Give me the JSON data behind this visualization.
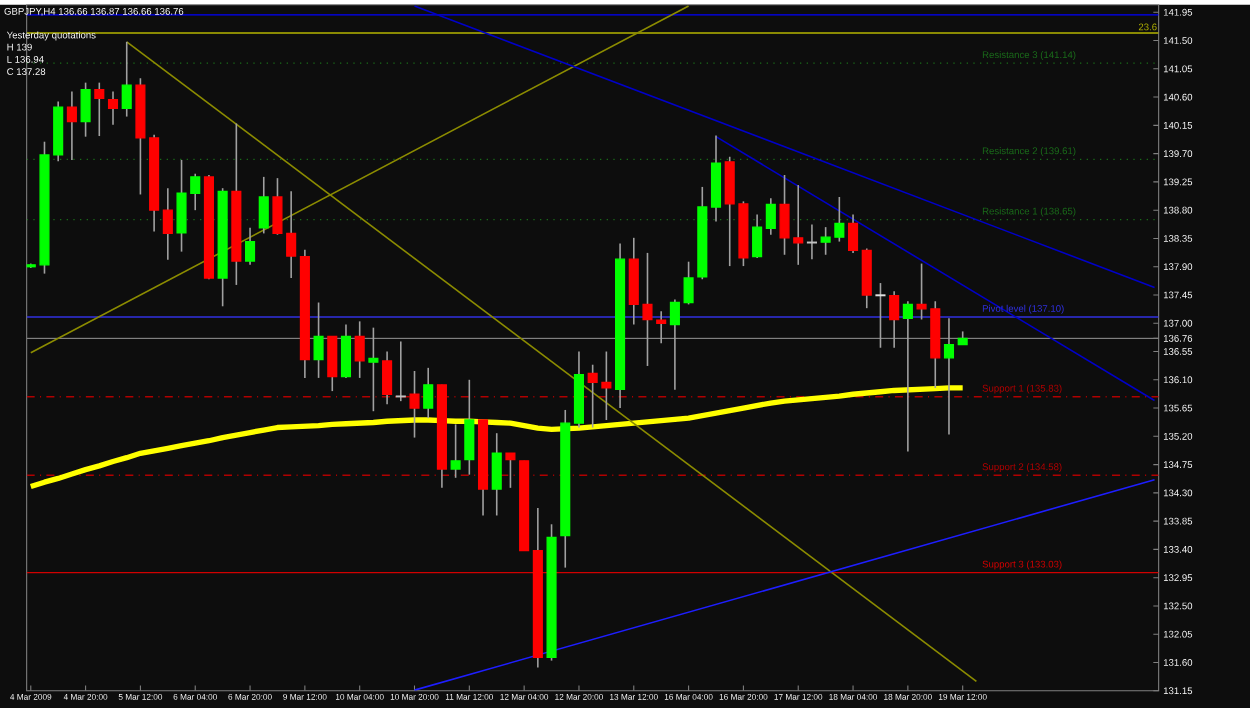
{
  "chart_data": {
    "type": "candlestick",
    "title": "GBPJPY,H4 136.66 136.87 136.66 136.76",
    "annotations": [
      "Yesterday quotations",
      "H 139",
      "L 136.94",
      "C 137.28",
      {
        "text": "23.6",
        "y": 141.62
      }
    ],
    "categories": [
      "4 Mar 2009",
      null,
      null,
      null,
      "4 Mar 20:00",
      null,
      null,
      null,
      "5 Mar 12:00",
      null,
      null,
      null,
      "6 Mar 04:00",
      null,
      null,
      null,
      "6 Mar 20:00",
      null,
      null,
      null,
      "9 Mar 12:00",
      null,
      null,
      null,
      "10 Mar 04:00",
      null,
      null,
      null,
      "10 Mar 20:00",
      null,
      null,
      null,
      "11 Mar 12:00",
      null,
      null,
      null,
      "12 Mar 04:00",
      null,
      null,
      null,
      "12 Mar 20:00",
      null,
      null,
      null,
      "13 Mar 12:00",
      null,
      null,
      null,
      "16 Mar 04:00",
      null,
      null,
      null,
      "16 Mar 20:00",
      null,
      null,
      null,
      "17 Mar 12:00",
      null,
      null,
      null,
      "18 Mar 04:00",
      null,
      null,
      null,
      "18 Mar 20:00",
      null,
      null,
      null,
      "19 Mar 12:00",
      null,
      null,
      null,
      null,
      null,
      null,
      null,
      null,
      null,
      null,
      null,
      null,
      null,
      null
    ],
    "ohlc": [
      [
        137.9,
        137.95,
        137.88,
        137.93
      ],
      [
        137.93,
        139.89,
        137.79,
        139.68
      ],
      [
        139.68,
        140.53,
        139.58,
        140.44
      ],
      [
        140.44,
        140.69,
        139.6,
        140.21
      ],
      [
        140.21,
        140.83,
        139.97,
        140.72
      ],
      [
        140.72,
        140.83,
        139.98,
        140.58
      ],
      [
        140.56,
        140.69,
        140.16,
        140.42
      ],
      [
        140.42,
        141.48,
        140.29,
        140.79
      ],
      [
        140.79,
        140.9,
        139.05,
        139.95
      ],
      [
        139.95,
        140.0,
        138.46,
        138.8
      ],
      [
        138.8,
        139.15,
        138.01,
        138.43
      ],
      [
        138.44,
        139.6,
        138.14,
        139.07
      ],
      [
        139.07,
        139.38,
        138.8,
        139.33
      ],
      [
        139.33,
        139.36,
        137.7,
        137.72
      ],
      [
        137.72,
        139.15,
        137.27,
        139.1
      ],
      [
        139.1,
        140.18,
        137.61,
        137.99
      ],
      [
        137.99,
        138.52,
        137.93,
        138.3
      ],
      [
        138.52,
        139.33,
        138.43,
        139.01
      ],
      [
        139.01,
        139.31,
        138.41,
        138.43
      ],
      [
        138.43,
        139.1,
        137.72,
        138.07
      ],
      [
        138.06,
        138.17,
        136.13,
        136.42
      ],
      [
        136.42,
        137.33,
        136.13,
        136.79
      ],
      [
        136.79,
        136.79,
        135.92,
        136.15
      ],
      [
        136.15,
        136.98,
        136.13,
        136.79
      ],
      [
        136.79,
        137.03,
        136.13,
        136.4
      ],
      [
        136.38,
        136.93,
        135.6,
        136.44
      ],
      [
        136.4,
        136.55,
        135.71,
        135.87
      ],
      [
        135.84,
        136.71,
        135.76,
        135.83
      ],
      [
        135.87,
        136.24,
        135.18,
        135.65
      ],
      [
        135.65,
        136.29,
        135.49,
        136.02
      ],
      [
        136.02,
        136.02,
        134.38,
        134.68
      ],
      [
        134.68,
        135.39,
        134.54,
        134.81
      ],
      [
        134.83,
        136.1,
        134.59,
        135.46
      ],
      [
        135.46,
        135.46,
        133.94,
        134.36
      ],
      [
        134.36,
        135.25,
        133.94,
        134.93
      ],
      [
        134.93,
        134.93,
        134.38,
        134.83
      ],
      [
        134.81,
        134.81,
        133.38,
        133.38
      ],
      [
        133.38,
        134.06,
        131.52,
        131.68
      ],
      [
        131.68,
        133.8,
        131.63,
        133.59
      ],
      [
        133.62,
        135.62,
        133.11,
        135.41
      ],
      [
        135.41,
        136.55,
        135.34,
        136.18
      ],
      [
        136.2,
        136.34,
        135.34,
        136.06
      ],
      [
        136.06,
        136.55,
        135.46,
        135.97
      ],
      [
        135.95,
        138.27,
        135.65,
        138.02
      ],
      [
        138.02,
        138.36,
        136.98,
        137.3
      ],
      [
        137.3,
        138.12,
        136.32,
        137.06
      ],
      [
        137.05,
        137.19,
        136.68,
        137.0
      ],
      [
        136.98,
        137.38,
        135.94,
        137.33
      ],
      [
        137.33,
        137.98,
        137.3,
        137.72
      ],
      [
        137.74,
        139.17,
        137.7,
        138.85
      ],
      [
        138.85,
        139.99,
        138.62,
        139.55
      ],
      [
        139.57,
        139.65,
        137.91,
        138.9
      ],
      [
        138.9,
        138.94,
        137.91,
        138.04
      ],
      [
        138.06,
        138.73,
        138.04,
        138.53
      ],
      [
        138.51,
        138.99,
        138.41,
        138.89
      ],
      [
        138.89,
        139.36,
        138.09,
        138.36
      ],
      [
        138.36,
        139.2,
        137.93,
        138.28
      ],
      [
        138.28,
        138.57,
        138.02,
        138.29
      ],
      [
        138.29,
        138.53,
        138.09,
        138.37
      ],
      [
        138.37,
        139.01,
        138.3,
        138.59
      ],
      [
        138.59,
        138.73,
        138.12,
        138.16
      ],
      [
        138.16,
        138.19,
        137.24,
        137.45
      ],
      [
        137.45,
        137.64,
        136.61,
        137.44
      ],
      [
        137.44,
        137.51,
        136.61,
        137.06
      ],
      [
        137.08,
        137.35,
        134.96,
        137.3
      ],
      [
        137.3,
        137.95,
        137.06,
        137.23
      ],
      [
        137.23,
        137.35,
        135.97,
        136.45
      ],
      [
        136.45,
        137.08,
        135.23,
        136.66
      ],
      [
        136.66,
        136.87,
        136.66,
        136.76
      ],
      null,
      null,
      null,
      null,
      null,
      null,
      null,
      null,
      null,
      null,
      null,
      null,
      null,
      null
    ],
    "colors": [
      "#00ff00",
      "#00ff00",
      "#00ff00",
      "#ff0000",
      "#00ff00",
      "#ff0000",
      "#ff0000",
      "#00ff00",
      "#ff0000",
      "#ff0000",
      "#ff0000",
      "#00ff00",
      "#00ff00",
      "#ff0000",
      "#00ff00",
      "#ff0000",
      "#00ff00",
      "#00ff00",
      "#ff0000",
      "#ff0000",
      "#ff0000",
      "#00ff00",
      "#ff0000",
      "#00ff00",
      "#ff0000",
      "#00ff00",
      "#ff0000",
      "#c0c0c0",
      "#ff0000",
      "#00ff00",
      "#ff0000",
      "#00ff00",
      "#00ff00",
      "#ff0000",
      "#00ff00",
      "#ff0000",
      "#ff0000",
      "#ff0000",
      "#00ff00",
      "#00ff00",
      "#00ff00",
      "#ff0000",
      "#ff0000",
      "#00ff00",
      "#ff0000",
      "#ff0000",
      "#ff0000",
      "#00ff00",
      "#00ff00",
      "#00ff00",
      "#00ff00",
      "#ff0000",
      "#ff0000",
      "#00ff00",
      "#00ff00",
      "#ff0000",
      "#ff0000",
      "#c0c0c0",
      "#00ff00",
      "#00ff00",
      "#ff0000",
      "#ff0000",
      "#e0e0e0",
      "#ff0000",
      "#00ff00",
      "#ff0000",
      "#ff0000",
      "#00ff00",
      "#00ff00",
      null,
      null,
      null,
      null,
      null,
      null,
      null,
      null,
      null,
      null,
      null,
      null,
      null,
      null
    ],
    "series": [
      {
        "type": "line",
        "color": "#ffff00",
        "values": [
          134.4,
          134.47,
          134.53,
          134.6,
          134.67,
          134.73,
          134.8,
          134.86,
          134.93,
          134.97,
          135.01,
          135.05,
          135.09,
          135.13,
          135.18,
          135.22,
          135.26,
          135.3,
          135.34,
          135.35,
          135.36,
          135.37,
          135.39,
          135.4,
          135.41,
          135.42,
          135.44,
          135.45,
          135.46,
          135.46,
          135.45,
          135.44,
          135.44,
          135.43,
          135.42,
          135.41,
          135.37,
          135.33,
          135.31,
          135.32,
          135.33,
          135.35,
          135.37,
          135.39,
          135.41,
          135.43,
          135.45,
          135.47,
          135.49,
          135.53,
          135.57,
          135.61,
          135.65,
          135.69,
          135.73,
          135.76,
          135.78,
          135.8,
          135.82,
          135.84,
          135.87,
          135.89,
          135.91,
          135.93,
          135.94,
          135.95,
          135.96,
          135.97,
          135.97,
          null,
          null,
          null,
          null,
          null,
          null,
          null,
          null,
          null,
          null,
          null,
          null,
          null,
          null
        ]
      },
      {
        "type": "line",
        "color": "#8c8c00",
        "values": [
          136.53,
          null,
          null,
          null,
          null,
          null,
          null,
          null,
          null,
          null,
          null,
          null,
          null,
          null,
          null,
          null,
          null,
          null,
          null,
          null,
          null,
          null,
          null,
          null,
          null,
          null,
          null,
          null,
          null,
          null,
          null,
          null,
          null,
          null,
          null,
          null,
          null,
          null,
          null,
          null,
          null,
          null,
          null,
          null,
          null,
          null,
          null,
          null,
          142.05,
          null,
          null,
          null,
          null,
          null,
          null,
          null,
          null,
          null,
          null,
          null,
          null,
          null,
          null,
          null,
          null,
          null,
          null,
          null,
          null,
          null,
          null,
          null,
          null,
          null,
          null,
          null,
          null,
          null,
          null,
          null,
          null,
          null,
          null
        ]
      },
      {
        "type": "line",
        "color": "#8c8c00",
        "values": [
          null,
          null,
          null,
          null,
          null,
          null,
          null,
          141.48,
          null,
          null,
          null,
          null,
          null,
          null,
          null,
          null,
          null,
          null,
          null,
          null,
          null,
          null,
          null,
          null,
          null,
          null,
          null,
          null,
          null,
          null,
          null,
          null,
          null,
          null,
          null,
          null,
          null,
          null,
          null,
          null,
          null,
          null,
          null,
          null,
          null,
          null,
          null,
          null,
          null,
          null,
          null,
          null,
          null,
          null,
          null,
          null,
          null,
          null,
          null,
          null,
          null,
          null,
          null,
          null,
          null,
          null,
          null,
          null,
          null,
          131.3,
          null,
          null,
          null,
          null,
          null,
          null,
          null,
          null,
          null,
          null,
          null,
          null,
          null
        ]
      },
      {
        "type": "line",
        "color": "#0000c8",
        "values": [
          null,
          null,
          null,
          null,
          null,
          null,
          null,
          null,
          null,
          null,
          null,
          null,
          null,
          null,
          null,
          null,
          null,
          null,
          null,
          null,
          null,
          null,
          null,
          null,
          null,
          null,
          null,
          null,
          142.05,
          null,
          null,
          null,
          null,
          null,
          null,
          null,
          null,
          null,
          null,
          null,
          null,
          null,
          null,
          null,
          null,
          null,
          null,
          null,
          null,
          null,
          null,
          null,
          null,
          null,
          null,
          null,
          null,
          null,
          null,
          null,
          null,
          null,
          null,
          null,
          null,
          null,
          null,
          null,
          null,
          null,
          null,
          null,
          null,
          null,
          null,
          null,
          null,
          null,
          null,
          null,
          null,
          null,
          137.57
        ]
      },
      {
        "type": "line",
        "color": "#0000c8",
        "values": [
          null,
          null,
          null,
          null,
          null,
          null,
          null,
          null,
          null,
          null,
          null,
          null,
          null,
          null,
          null,
          null,
          null,
          null,
          null,
          null,
          null,
          null,
          null,
          null,
          null,
          null,
          null,
          null,
          null,
          null,
          null,
          null,
          null,
          null,
          null,
          null,
          null,
          null,
          null,
          null,
          null,
          null,
          null,
          null,
          null,
          null,
          null,
          null,
          null,
          null,
          139.97,
          null,
          null,
          null,
          null,
          null,
          null,
          null,
          null,
          null,
          null,
          null,
          null,
          null,
          null,
          null,
          null,
          null,
          null,
          null,
          null,
          null,
          null,
          null,
          null,
          null,
          null,
          null,
          null,
          null,
          null,
          null,
          135.77
        ]
      },
      {
        "type": "line",
        "color": "#1e1eff",
        "values": [
          null,
          null,
          null,
          null,
          null,
          null,
          null,
          null,
          null,
          null,
          null,
          null,
          null,
          null,
          null,
          null,
          null,
          null,
          null,
          null,
          null,
          null,
          null,
          null,
          null,
          null,
          null,
          null,
          131.16,
          null,
          null,
          null,
          null,
          null,
          null,
          null,
          null,
          null,
          null,
          null,
          null,
          null,
          null,
          null,
          null,
          null,
          null,
          null,
          null,
          null,
          null,
          null,
          null,
          null,
          null,
          null,
          null,
          null,
          null,
          null,
          null,
          null,
          null,
          null,
          null,
          null,
          null,
          null,
          null,
          null,
          null,
          null,
          null,
          null,
          null,
          null,
          null,
          null,
          null,
          null,
          null,
          null,
          134.51
        ]
      }
    ],
    "ref_lines": [
      {
        "axis": "y",
        "value": 141.91,
        "color": "#0000ff",
        "line_style": "solid"
      },
      {
        "axis": "y",
        "value": 141.62,
        "color": "#b4b400",
        "line_style": "solid"
      },
      {
        "axis": "y",
        "value": 141.14,
        "label": "Resistance 3 (141.14)",
        "color": "#1a6b1a",
        "line_style": "dotted"
      },
      {
        "axis": "y",
        "value": 139.61,
        "label": "Resistance 2 (139.61)",
        "color": "#1a6b1a",
        "line_style": "dotted"
      },
      {
        "axis": "y",
        "value": 138.65,
        "label": "Resistance 1 (138.65)",
        "color": "#1a6b1a",
        "line_style": "dotted"
      },
      {
        "axis": "y",
        "value": 137.1,
        "label": "Pivot level (137.10)",
        "color": "#3030e0",
        "line_style": "solid"
      },
      {
        "axis": "y",
        "value": 136.76,
        "color": "#808080",
        "line_style": "solid"
      },
      {
        "axis": "y",
        "value": 135.83,
        "label": "Support 1 (135.83)",
        "color": "#b00000",
        "line_style": "dashdotted"
      },
      {
        "axis": "y",
        "value": 134.58,
        "label": "Support 2 (134.58)",
        "color": "#b00000",
        "line_style": "dashdotted"
      },
      {
        "axis": "y",
        "value": 133.03,
        "label": "Support 3 (133.03)",
        "color": "#d00000",
        "line_style": "solid"
      }
    ],
    "ylim": [
      131.15,
      142.07
    ],
    "yticks": [
      141.95,
      {
        "value": 141.5,
        "label": "141.50"
      },
      141.05,
      {
        "value": 140.6,
        "label": "140.60"
      },
      140.15,
      {
        "value": 139.7,
        "label": "139.70"
      },
      139.25,
      {
        "value": 138.8,
        "label": "138.80"
      },
      138.35,
      {
        "value": 137.9,
        "label": "137.90"
      },
      137.45,
      {
        "value": 137,
        "label": "137.00"
      },
      136.76,
      136.55,
      {
        "value": 136.1,
        "label": "136.10"
      },
      135.65,
      {
        "value": 135.2,
        "label": "135.20"
      },
      134.75,
      {
        "value": 134.3,
        "label": "134.30"
      },
      133.85,
      {
        "value": 133.4,
        "label": "133.40"
      },
      132.95,
      {
        "value": 132.5,
        "label": "132.50"
      },
      132.05,
      {
        "value": 131.6,
        "label": "131.60"
      },
      131.15
    ]
  }
}
